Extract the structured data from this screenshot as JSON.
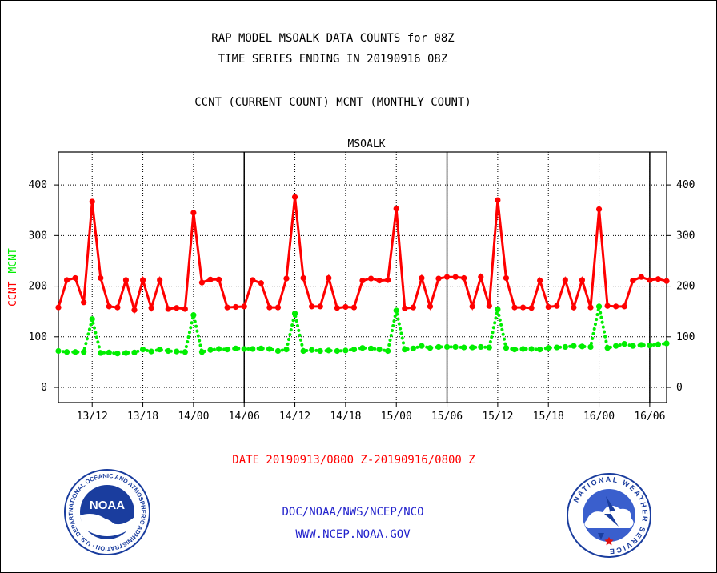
{
  "header": {
    "title_line1": "RAP MODEL MSOALK DATA COUNTS for 08Z",
    "title_line2": "TIME SERIES ENDING IN 20190916 08Z",
    "subtitle": "CCNT (CURRENT COUNT) MCNT (MONTHLY COUNT)"
  },
  "chart_data": {
    "type": "line",
    "title": "MSOALK",
    "ylabel_left_1": "CCNT",
    "ylabel_left_2": "MCNT",
    "xlabel": "DATE 20190913/0800 Z-20190916/0800 Z",
    "ylim": [
      -30,
      465
    ],
    "x_start_hour": 0,
    "x_end_hour": 72,
    "x_ticks": [
      {
        "hour": 4,
        "label": "13/12"
      },
      {
        "hour": 10,
        "label": "13/18"
      },
      {
        "hour": 16,
        "label": "14/00"
      },
      {
        "hour": 22,
        "label": "14/06"
      },
      {
        "hour": 28,
        "label": "14/12"
      },
      {
        "hour": 34,
        "label": "14/18"
      },
      {
        "hour": 40,
        "label": "15/00"
      },
      {
        "hour": 46,
        "label": "15/06"
      },
      {
        "hour": 52,
        "label": "15/12"
      },
      {
        "hour": 58,
        "label": "15/18"
      },
      {
        "hour": 64,
        "label": "16/00"
      },
      {
        "hour": 70,
        "label": "16/06"
      }
    ],
    "y_ticks": [
      0,
      100,
      200,
      300,
      400
    ],
    "day_boundaries_hours": [
      22,
      46,
      70
    ],
    "grid": true,
    "series": [
      {
        "name": "CCNT",
        "color": "#ff0000",
        "style": "solid",
        "values": [
          158,
          212,
          216,
          168,
          367,
          216,
          160,
          158,
          212,
          153,
          212,
          157,
          212,
          155,
          157,
          155,
          345,
          207,
          213,
          213,
          158,
          159,
          160,
          212,
          206,
          158,
          158,
          215,
          376,
          216,
          160,
          160,
          216,
          157,
          159,
          158,
          211,
          215,
          211,
          212,
          353,
          156,
          158,
          216,
          160,
          215,
          218,
          218,
          216,
          160,
          218,
          161,
          370,
          216,
          158,
          158,
          157,
          211,
          159,
          161,
          212,
          158,
          212,
          158,
          352,
          161,
          160,
          160,
          211,
          218,
          212,
          214,
          210
        ]
      },
      {
        "name": "MCNT",
        "color": "#00ee00",
        "style": "dotted",
        "values": [
          72,
          70,
          70,
          70,
          135,
          68,
          69,
          67,
          68,
          69,
          75,
          71,
          75,
          72,
          71,
          70,
          143,
          70,
          74,
          76,
          75,
          77,
          76,
          76,
          77,
          76,
          72,
          75,
          146,
          72,
          74,
          72,
          73,
          72,
          73,
          75,
          78,
          77,
          75,
          72,
          152,
          75,
          77,
          82,
          78,
          80,
          80,
          80,
          79,
          79,
          80,
          79,
          154,
          78,
          75,
          76,
          76,
          75,
          78,
          79,
          80,
          82,
          81,
          80,
          160,
          78,
          82,
          86,
          82,
          84,
          83,
          85,
          87
        ]
      }
    ]
  },
  "footer": {
    "link1": "DOC/NOAA/NWS/NCEP/NCO",
    "link2": "WWW.NCEP.NOAA.GOV",
    "noaa_logo_text": "NOAA",
    "noaa_ring_text": "NATIONAL OCEANIC AND ATMOSPHERIC ADMINISTRATION · U.S. DEPARTMENT OF COMMERCE ·",
    "nws_ring_text": "NATIONAL WEATHER SERVICE"
  },
  "colors": {
    "ccnt": "#ff0000",
    "mcnt": "#00ee00",
    "link": "#2222cc",
    "noaa_blue": "#1a3d9e",
    "nws_blue": "#3a5fcd"
  }
}
